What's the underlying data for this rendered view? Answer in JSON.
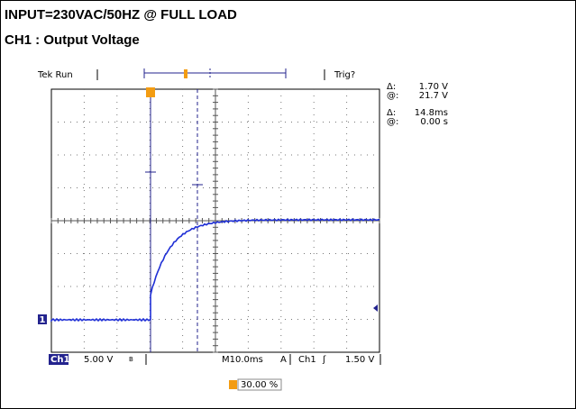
{
  "header": {
    "lines": [
      "INPUT=230VAC/50HZ @ FULL LOAD",
      "CH1 : Output Voltage"
    ]
  },
  "scope": {
    "status": "Tek Run",
    "trigger_state": "Trig?",
    "readouts": [
      {
        "symbol": "Δ:",
        "value": "1.70 V"
      },
      {
        "symbol": "@:",
        "value": "21.7 V"
      },
      {
        "symbol": "Δ:",
        "value": "14.8ms"
      },
      {
        "symbol": "@:",
        "value": "0.00 s"
      }
    ],
    "channel_marker": "1",
    "bottom": {
      "channel": "Ch1",
      "scale": "5.00 V",
      "timebase": "M10.0ms",
      "trigger_mode": "A",
      "trigger_source": "Ch1",
      "trigger_level": "1.50 V"
    },
    "trigger_position": "30.00 %"
  }
}
